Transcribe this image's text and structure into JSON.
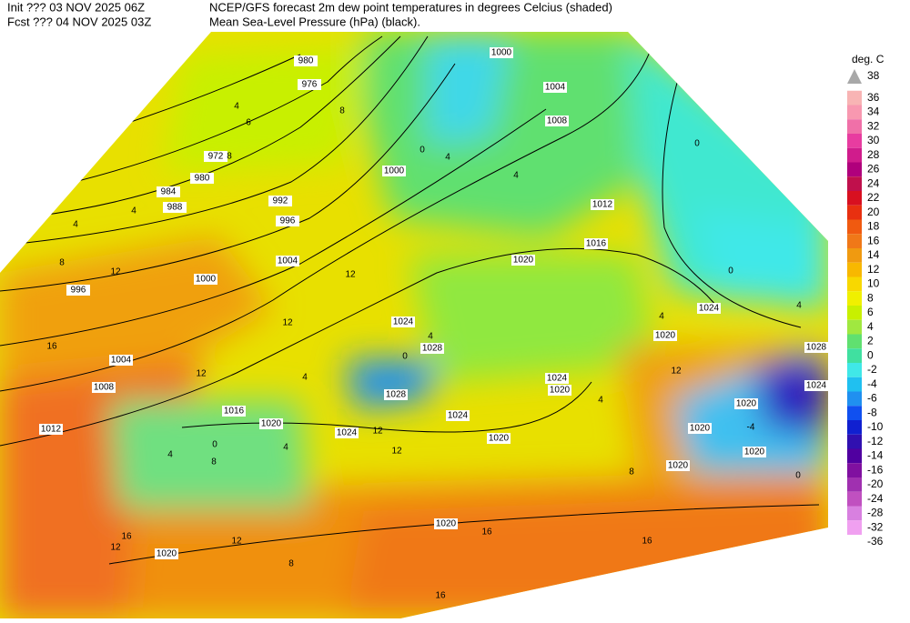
{
  "header": {
    "init": "Init  ??? 03 NOV 2025 06Z",
    "fcst": "Fcst ??? 04 NOV 2025 03Z",
    "title": "NCEP/GFS forecast 2m dew point temperatures in degrees Celcius (shaded)",
    "subtitle": "Mean Sea-Level Pressure (hPa) (black)."
  },
  "legend": {
    "title": "deg. C",
    "labels": [
      38,
      36,
      34,
      32,
      30,
      28,
      26,
      24,
      22,
      20,
      18,
      16,
      14,
      12,
      10,
      8,
      6,
      4,
      2,
      0,
      -2,
      -4,
      -6,
      -8,
      -10,
      -12,
      -14,
      -16,
      -20,
      -24,
      -28,
      -32,
      -36
    ],
    "over_color": "#a8a8a8",
    "colors": [
      "#f8b4b4",
      "#f898b0",
      "#f070a8",
      "#e83ca0",
      "#d01c8c",
      "#b0007c",
      "#c0104c",
      "#d81020",
      "#e83010",
      "#f05a10",
      "#f07818",
      "#f09a10",
      "#f8b800",
      "#f8d800",
      "#f0f000",
      "#c8f000",
      "#a0e840",
      "#60e070",
      "#40e0a0",
      "#40e8e8",
      "#20c0f0",
      "#2090f0",
      "#1050f0",
      "#1020d0",
      "#3010b0",
      "#5000a0",
      "#8010a0",
      "#a030b0",
      "#c050c0",
      "#d880e0",
      "#f0a0f0"
    ]
  },
  "map": {
    "isobar_labels": [
      980,
      976,
      972,
      980,
      984,
      988,
      992,
      996,
      1004,
      1000,
      996,
      1004,
      1008,
      1012,
      1016,
      1020,
      1024,
      1024,
      1028,
      1028,
      1024,
      1020,
      1024,
      1020,
      1020,
      1024,
      1020,
      1016,
      1012,
      1008,
      1004,
      1000,
      1000,
      1020,
      1020,
      1020,
      1020,
      1020,
      1020,
      1028,
      1024
    ],
    "dewpoint_labels": [
      4,
      6,
      8,
      8,
      4,
      4,
      8,
      12,
      12,
      12,
      16,
      12,
      12,
      12,
      8,
      4,
      0,
      4,
      16,
      16,
      12,
      12,
      16,
      8,
      16,
      0,
      4,
      4,
      0,
      0,
      4,
      12,
      4,
      -4,
      0,
      4,
      0,
      4,
      4,
      8
    ]
  }
}
